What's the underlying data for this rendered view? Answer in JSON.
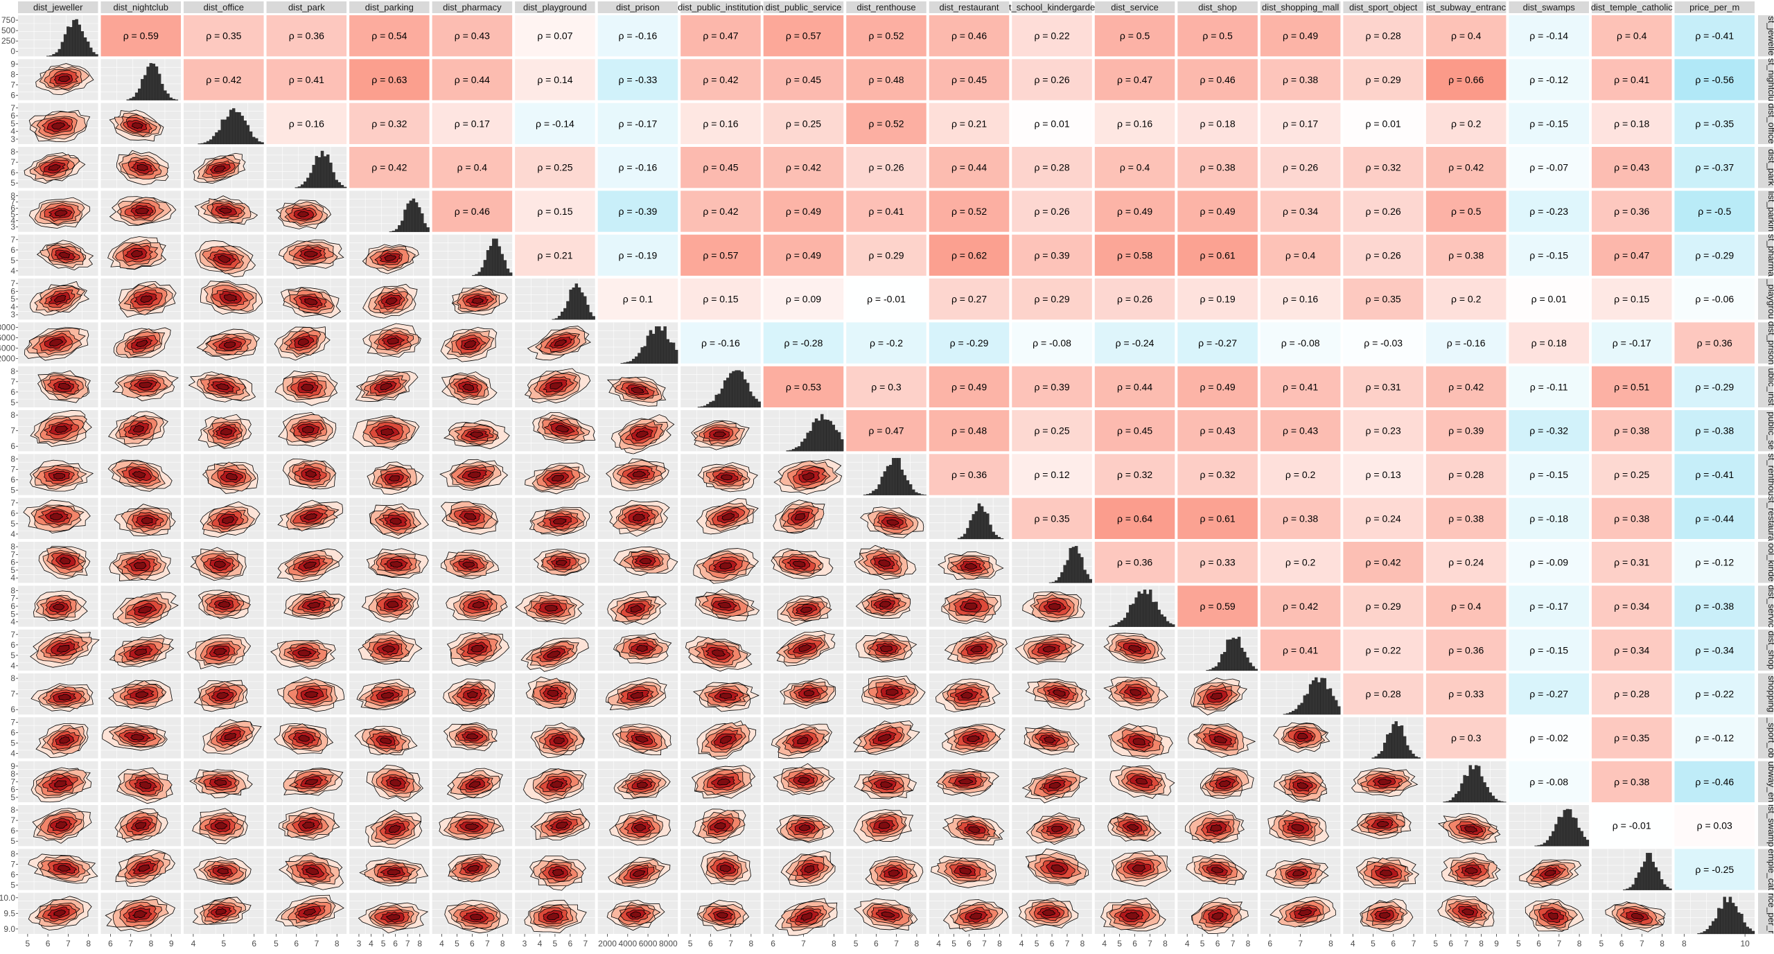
{
  "chart_data": {
    "type": "pairs-matrix",
    "variables": [
      "dist_jeweller",
      "dist_nightclub",
      "dist_office",
      "dist_park",
      "dist_parking",
      "dist_pharmacy",
      "dist_playground",
      "dist_prison",
      "dist_public_institution",
      "dist_public_service",
      "dist_renthouse",
      "dist_restaurant",
      "dist_school_kindergarden",
      "dist_service",
      "dist_shop",
      "dist_shopping_mall",
      "dist_sport_object",
      "dist_subway_entrance",
      "dist_swamps",
      "dist_temple_catholic",
      "price_per_m"
    ],
    "column_strip_labels": [
      "dist_jeweller",
      "dist_nightclub",
      "dist_office",
      "dist_park",
      "dist_parking",
      "dist_pharmacy",
      "dist_playground",
      "dist_prison",
      "dist_public_institution",
      "dist_public_service",
      "dist_renthouse",
      "dist_restaurant",
      "t_school_kindergarde",
      "dist_service",
      "dist_shop",
      "dist_shopping_mall",
      "dist_sport_object",
      "ist_subway_entranc",
      "dist_swamps",
      "dist_temple_catholic",
      "price_per_m"
    ],
    "row_strip_labels": [
      "st_jewelle",
      "st_nightclu",
      "dist_office",
      "dist_park",
      "list_parkin",
      "st_pharma",
      "_playgrou",
      "dist_prison",
      "ublic_inst",
      "public_se",
      "st_renthou",
      "st_restaura",
      "ool_kinde",
      "dist_servic",
      "dist_shop",
      "shopping",
      "_sport_ob",
      "ubway_en",
      "ist_swamp",
      "emple_cat",
      "rice_per_r"
    ],
    "upper_panel": "spearman correlation text on colored tile",
    "lower_panel": "2D density contours (filled, red scale)",
    "diagonal_panel": "histogram",
    "correlation_prefix": "ρ = ",
    "correlations": [
      [
        0.59,
        0.35,
        0.36,
        0.54,
        0.43,
        0.07,
        -0.16,
        0.47,
        0.57,
        0.52,
        0.46,
        0.22,
        0.5,
        0.5,
        0.49,
        0.28,
        0.4,
        -0.14,
        0.4,
        -0.41
      ],
      [
        0.42,
        0.41,
        0.63,
        0.44,
        0.14,
        -0.33,
        0.42,
        0.45,
        0.48,
        0.45,
        0.26,
        0.47,
        0.46,
        0.38,
        0.29,
        0.66,
        -0.12,
        0.41,
        -0.56
      ],
      [
        0.16,
        0.32,
        0.17,
        -0.14,
        -0.17,
        0.16,
        0.25,
        0.52,
        0.21,
        0.01,
        0.16,
        0.18,
        0.17,
        0.01,
        0.2,
        -0.15,
        0.18,
        -0.35
      ],
      [
        0.42,
        0.4,
        0.25,
        -0.16,
        0.45,
        0.42,
        0.26,
        0.44,
        0.28,
        0.4,
        0.38,
        0.26,
        0.32,
        0.42,
        -0.07,
        0.43,
        -0.37
      ],
      [
        0.46,
        0.15,
        -0.39,
        0.42,
        0.49,
        0.41,
        0.52,
        0.26,
        0.49,
        0.49,
        0.34,
        0.26,
        0.5,
        -0.23,
        0.36,
        -0.5
      ],
      [
        0.21,
        -0.19,
        0.57,
        0.49,
        0.29,
        0.62,
        0.39,
        0.58,
        0.61,
        0.4,
        0.26,
        0.38,
        -0.15,
        0.47,
        -0.29
      ],
      [
        0.1,
        0.15,
        0.09,
        -0.01,
        0.27,
        0.29,
        0.26,
        0.19,
        0.16,
        0.35,
        0.2,
        0.01,
        0.15,
        -0.06
      ],
      [
        -0.16,
        -0.28,
        -0.2,
        -0.29,
        -0.08,
        -0.24,
        -0.27,
        -0.08,
        -0.03,
        -0.16,
        0.18,
        -0.17,
        0.36
      ],
      [
        0.53,
        0.3,
        0.49,
        0.39,
        0.44,
        0.49,
        0.41,
        0.31,
        0.42,
        -0.11,
        0.51,
        -0.29
      ],
      [
        0.47,
        0.48,
        0.25,
        0.45,
        0.43,
        0.43,
        0.23,
        0.39,
        -0.32,
        0.38,
        -0.38
      ],
      [
        0.36,
        0.12,
        0.32,
        0.32,
        0.2,
        0.13,
        0.28,
        -0.15,
        0.25,
        -0.41
      ],
      [
        0.35,
        0.64,
        0.61,
        0.38,
        0.24,
        0.38,
        -0.18,
        0.38,
        -0.44
      ],
      [
        0.36,
        0.33,
        0.2,
        0.42,
        0.24,
        -0.09,
        0.31,
        -0.12
      ],
      [
        0.59,
        0.42,
        0.29,
        0.4,
        -0.17,
        0.34,
        -0.38
      ],
      [
        0.41,
        0.22,
        0.36,
        -0.15,
        0.34,
        -0.34
      ],
      [
        0.28,
        0.33,
        -0.27,
        0.28,
        -0.22
      ],
      [
        0.3,
        -0.02,
        0.35,
        -0.12
      ],
      [
        -0.08,
        0.38,
        -0.46
      ],
      [
        -0.01,
        0.03
      ],
      [
        -0.25
      ]
    ],
    "x_axis_ticks": [
      [
        "5",
        "6",
        "7",
        "8"
      ],
      [
        "6",
        "7",
        "8",
        "9"
      ],
      [
        "4",
        "5",
        "6"
      ],
      [
        "5",
        "6",
        "7",
        "8"
      ],
      [
        "3",
        "4",
        "5",
        "6",
        "7",
        "8"
      ],
      [
        "4",
        "5",
        "6",
        "7",
        "8"
      ],
      [
        "3",
        "4",
        "5",
        "6",
        "7"
      ],
      [
        "2000",
        "4000",
        "6000",
        "8000"
      ],
      [
        "5",
        "6",
        "7",
        "8"
      ],
      [
        "6",
        "7",
        "8"
      ],
      [
        "5",
        "6",
        "7",
        "8"
      ],
      [
        "4",
        "5",
        "6",
        "7",
        "8"
      ],
      [
        "4",
        "5",
        "6",
        "7",
        "8"
      ],
      [
        "4",
        "5",
        "6",
        "7",
        "8"
      ],
      [
        "4",
        "5",
        "6",
        "7",
        "8"
      ],
      [
        "6",
        "7",
        "8"
      ],
      [
        "4",
        "5",
        "6",
        "7"
      ],
      [
        "5",
        "6",
        "7",
        "8",
        "9"
      ],
      [
        "5",
        "6",
        "7",
        "8"
      ],
      [
        "5",
        "6",
        "7",
        "8"
      ],
      [
        "8",
        "10"
      ]
    ],
    "y_axis_ticks": [
      [
        "750",
        "500",
        "250",
        "0"
      ],
      [
        "9",
        "8",
        "7",
        "6"
      ],
      [
        "7",
        "6",
        "5",
        "4",
        "3"
      ],
      [
        "8",
        "7",
        "6",
        "5"
      ],
      [
        "8",
        "7",
        "6",
        "5",
        "4",
        "3"
      ],
      [
        "7",
        "6",
        "5",
        "4"
      ],
      [
        "7",
        "6",
        "5",
        "4",
        "3"
      ],
      [
        "8000",
        "6000",
        "4000",
        "2000"
      ],
      [
        "8",
        "7",
        "6",
        "5"
      ],
      [
        "8",
        "7",
        "6"
      ],
      [
        "8",
        "7",
        "6",
        "5"
      ],
      [
        "7",
        "6",
        "5",
        "4"
      ],
      [
        "8",
        "7",
        "6",
        "5",
        "4"
      ],
      [
        "8",
        "7",
        "6",
        "5",
        "4"
      ],
      [
        "7",
        "6",
        "5",
        "4"
      ],
      [
        "8",
        "7",
        "6"
      ],
      [
        "7",
        "6",
        "5",
        "4"
      ],
      [
        "9",
        "8",
        "7",
        "6",
        "5"
      ],
      [
        "8",
        "7",
        "6",
        "5"
      ],
      [
        "8",
        "7",
        "6",
        "5"
      ],
      [
        "10.0",
        "9.5",
        "9.0"
      ]
    ],
    "colors": {
      "panel_background": "#ebebeb",
      "grid": "#ffffff",
      "strip_background": "#d9d9d9",
      "histogram_fill": "#333333",
      "density_low": "#fde0d2",
      "density_mid": "#ef7d63",
      "density_high": "#a50f15",
      "corr_positive_max": "#fb9a89",
      "corr_negative_max": "#a3e4f5"
    }
  }
}
